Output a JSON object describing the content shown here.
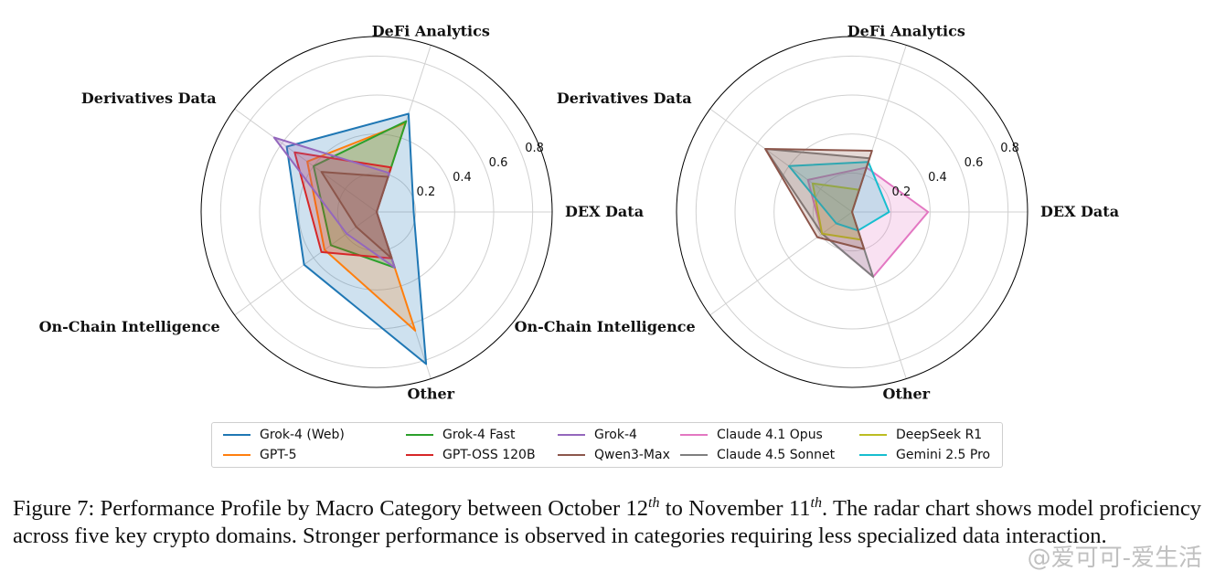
{
  "chart_data": [
    {
      "type": "radar",
      "categories": [
        "DEX Data",
        "DeFi Analytics",
        "Derivatives Data",
        "On-Chain Intelligence",
        "Other"
      ],
      "rticks": [
        "0.2",
        "0.4",
        "0.6",
        "0.8"
      ],
      "rlim": [
        0,
        0.9
      ],
      "grid": true,
      "series": [
        {
          "name": "Grok-4 (Web)",
          "color": "#1f77b4",
          "values": [
            0.19,
            0.53,
            0.57,
            0.46,
            0.82
          ]
        },
        {
          "name": "GPT-5",
          "color": "#ff7f0e",
          "values": [
            0.0,
            0.48,
            0.44,
            0.33,
            0.64
          ]
        },
        {
          "name": "Grok-4 Fast",
          "color": "#2ca02c",
          "values": [
            0.0,
            0.49,
            0.4,
            0.29,
            0.3
          ]
        },
        {
          "name": "GPT-OSS 120B",
          "color": "#d62728",
          "values": [
            0.0,
            0.24,
            0.52,
            0.35,
            0.25
          ]
        },
        {
          "name": "Grok-4",
          "color": "#9467bd",
          "values": [
            0.0,
            0.21,
            0.65,
            0.19,
            0.3
          ]
        },
        {
          "name": "Qwen3-Max",
          "color": "#8c564b",
          "values": [
            0.0,
            0.19,
            0.35,
            0.13,
            0.25
          ]
        }
      ]
    },
    {
      "type": "radar",
      "categories": [
        "DEX Data",
        "DeFi Analytics",
        "Derivatives Data",
        "On-Chain Intelligence",
        "Other"
      ],
      "rticks": [
        "0.2",
        "0.4",
        "0.6",
        "0.8"
      ],
      "rlim": [
        0,
        0.9
      ],
      "grid": true,
      "series": [
        {
          "name": "Claude 4.1 Opus",
          "color": "#e377c2",
          "values": [
            0.39,
            0.24,
            0.28,
            0.19,
            0.35
          ]
        },
        {
          "name": "Claude 4.5 Sonnet",
          "color": "#7f7f7f",
          "values": [
            0.0,
            0.29,
            0.55,
            0.19,
            0.35
          ]
        },
        {
          "name": "DeepSeek R1",
          "color": "#bcbd22",
          "values": [
            0.0,
            0.12,
            0.25,
            0.19,
            0.15
          ]
        },
        {
          "name": "Gemini 2.5 Pro",
          "color": "#17becf",
          "values": [
            0.19,
            0.27,
            0.4,
            0.1,
            0.1
          ]
        },
        {
          "name": "Qwen3-Max",
          "color": "#8c564b",
          "values": [
            0.0,
            0.33,
            0.55,
            0.22,
            0.2
          ]
        }
      ]
    }
  ],
  "legend": [
    {
      "name": "Grok-4 (Web)",
      "color": "#1f77b4"
    },
    {
      "name": "GPT-5",
      "color": "#ff7f0e"
    },
    {
      "name": "Grok-4 Fast",
      "color": "#2ca02c"
    },
    {
      "name": "GPT-OSS 120B",
      "color": "#d62728"
    },
    {
      "name": "Grok-4",
      "color": "#9467bd"
    },
    {
      "name": "Qwen3-Max",
      "color": "#8c564b"
    },
    {
      "name": "Claude 4.1 Opus",
      "color": "#e377c2"
    },
    {
      "name": "Claude 4.5 Sonnet",
      "color": "#7f7f7f"
    },
    {
      "name": "DeepSeek R1",
      "color": "#bcbd22"
    },
    {
      "name": "Gemini 2.5 Pro",
      "color": "#17becf"
    }
  ],
  "caption": {
    "text1": "Figure 7: Performance Profile by Macro Category between October 12",
    "sup1": "th",
    "text2": " to November 11",
    "sup2": "th",
    "text3": ". The radar chart shows model proficiency across five key crypto domains.  Stronger performance is observed in categories requiring less specialized data interaction."
  },
  "watermark": "@爱可可-爱生活"
}
